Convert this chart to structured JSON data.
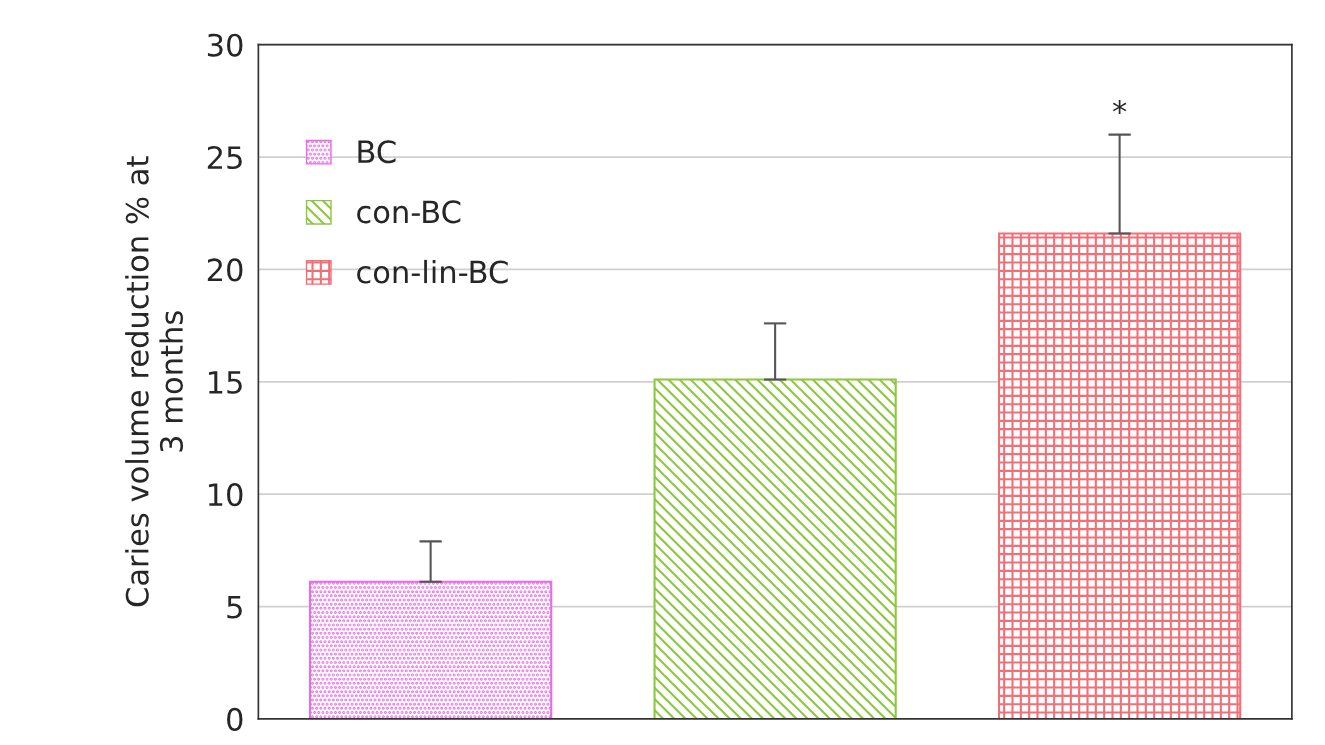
{
  "chart_data": {
    "type": "bar",
    "ylabel": "Caries volume reduction % at\n3 months",
    "categories": [
      null,
      null,
      null
    ],
    "series": [
      {
        "name": "BC",
        "color": "#e86be8",
        "values": [
          6.1,
          null,
          null
        ],
        "errors": [
          [
            6.1,
            7.9
          ],
          null,
          null
        ]
      },
      {
        "name": "con-BC",
        "color": "#8dc63f",
        "values": [
          null,
          15.1,
          null
        ],
        "errors": [
          null,
          [
            15.1,
            17.6
          ],
          null
        ]
      },
      {
        "name": "con-lin-BC",
        "color": "#f07078",
        "values": [
          null,
          null,
          21.6
        ],
        "errors": [
          null,
          null,
          [
            21.6,
            26.0
          ]
        ]
      }
    ],
    "annotations": [
      {
        "text": "*",
        "y": 26.0
      }
    ],
    "ylim": [
      0,
      30
    ],
    "yticks": [
      0,
      5,
      10,
      15,
      20,
      25,
      30
    ],
    "grid": "y",
    "legend": "top left",
    "tick_labels": "y"
  }
}
